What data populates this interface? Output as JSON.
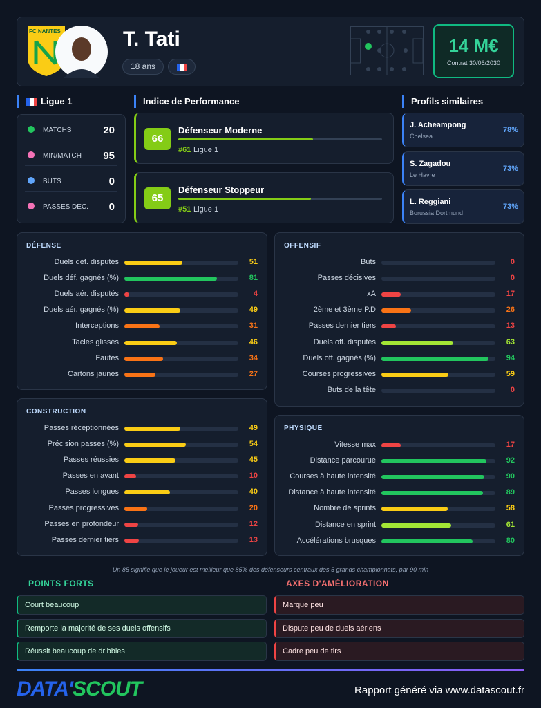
{
  "header": {
    "club": "FC NANTES",
    "name": "T. Tati",
    "age": "18 ans",
    "market_value": "14 M€",
    "contract": "Contrat 30/06/2030"
  },
  "league": {
    "title": "Ligue 1",
    "stats": [
      {
        "label": "MATCHS",
        "value": 20
      },
      {
        "label": "MIN/MATCH",
        "value": 95
      },
      {
        "label": "BUTS",
        "value": 0
      },
      {
        "label": "PASSES DÉC.",
        "value": 0
      }
    ]
  },
  "performance": {
    "title": "Indice de Performance",
    "xlim": [
      0,
      100
    ],
    "items": [
      {
        "score": 66,
        "role": "Défenseur Moderne",
        "rank": "#61",
        "league": "Ligue 1"
      },
      {
        "score": 65,
        "role": "Défenseur Stoppeur",
        "rank": "#51",
        "league": "Ligue 1"
      }
    ]
  },
  "similar": {
    "title": "Profils similaires",
    "items": [
      {
        "name": "J. Acheampong",
        "club": "Chelsea",
        "similarity": "78%"
      },
      {
        "name": "S. Zagadou",
        "club": "Le Havre",
        "similarity": "73%"
      },
      {
        "name": "L. Reggiani",
        "club": "Borussia Dortmund",
        "similarity": "73%"
      }
    ]
  },
  "stats": {
    "xlim": [
      0,
      100
    ],
    "sections": [
      {
        "title": "DÉFENSE",
        "rows": [
          {
            "label": "Duels déf. disputés",
            "value": 51
          },
          {
            "label": "Duels déf. gagnés (%)",
            "value": 81
          },
          {
            "label": "Duels aér. disputés",
            "value": 4
          },
          {
            "label": "Duels aér. gagnés (%)",
            "value": 49
          },
          {
            "label": "Interceptions",
            "value": 31
          },
          {
            "label": "Tacles glissés",
            "value": 46
          },
          {
            "label": "Fautes",
            "value": 34
          },
          {
            "label": "Cartons jaunes",
            "value": 27
          }
        ]
      },
      {
        "title": "OFFENSIF",
        "rows": [
          {
            "label": "Buts",
            "value": 0
          },
          {
            "label": "Passes décisives",
            "value": 0
          },
          {
            "label": "xA",
            "value": 17
          },
          {
            "label": "2ème et 3ème P.D",
            "value": 26
          },
          {
            "label": "Passes dernier tiers",
            "value": 13
          },
          {
            "label": "Duels off. disputés",
            "value": 63
          },
          {
            "label": "Duels off. gagnés (%)",
            "value": 94
          },
          {
            "label": "Courses progressives",
            "value": 59
          },
          {
            "label": "Buts de la tête",
            "value": 0
          }
        ]
      },
      {
        "title": "CONSTRUCTION",
        "rows": [
          {
            "label": "Passes réceptionnées",
            "value": 49
          },
          {
            "label": "Précision passes (%)",
            "value": 54
          },
          {
            "label": "Passes réussies",
            "value": 45
          },
          {
            "label": "Passes en avant",
            "value": 10
          },
          {
            "label": "Passes longues",
            "value": 40
          },
          {
            "label": "Passes progressives",
            "value": 20
          },
          {
            "label": "Passes en profondeur",
            "value": 12
          },
          {
            "label": "Passes dernier tiers",
            "value": 13
          }
        ]
      },
      {
        "title": "PHYSIQUE",
        "rows": [
          {
            "label": "Vitesse max",
            "value": 17
          },
          {
            "label": "Distance parcourue",
            "value": 92
          },
          {
            "label": "Courses à haute intensité",
            "value": 90
          },
          {
            "label": "Distance à haute intensité",
            "value": 89
          },
          {
            "label": "Nombre de sprints",
            "value": 58
          },
          {
            "label": "Distance en sprint",
            "value": 61
          },
          {
            "label": "Accélérations brusques",
            "value": 80
          }
        ]
      }
    ]
  },
  "footnote": "Un 85 signifie que le joueur est meilleur que 85% des défenseurs centraux des 5 grands championnats, par 90 min",
  "strengths": {
    "title": "POINTS FORTS",
    "items": [
      "Court beaucoup",
      "Remporte la majorité de ses duels offensifs",
      "Réussit beaucoup de dribbles"
    ]
  },
  "improvements": {
    "title": "AXES D'AMÉLIORATION",
    "items": [
      "Marque peu",
      "Dispute peu de duels aériens",
      "Cadre peu de tirs"
    ]
  },
  "footer": {
    "brand_a": "DATA'",
    "brand_b": "SCOUT",
    "note": "Rapport généré via www.datascout.fr"
  }
}
